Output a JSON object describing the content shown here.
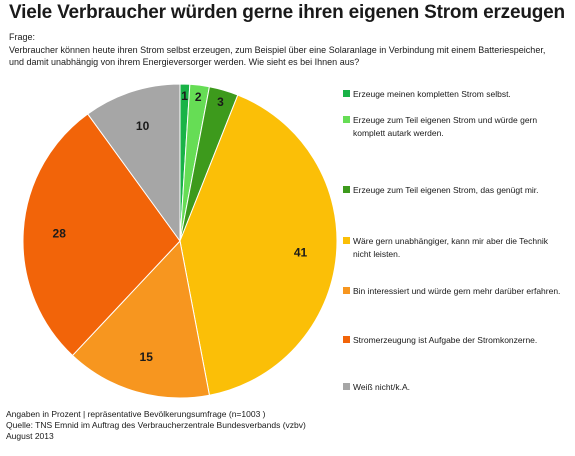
{
  "title": "Viele Verbraucher würden gerne ihren eigenen Strom erzeugen",
  "question_label": "Frage:",
  "question_text": "Verbraucher können heute ihren Strom selbst erzeugen, zum Beispiel über eine Solaranlage in Verbindung mit einem Batteriespeicher, und damit unabhängig von ihrem Energieversorger werden. Wie sieht es bei Ihnen aus?",
  "footer": {
    "note": "Angaben in Prozent | repräsentative Bevölkerungsumfrage (n=1003 )",
    "source": "Quelle: TNS Emnid im Auftrag des Verbraucherzentrale Bundesverbands (vzbv)",
    "date": "August 2013"
  },
  "chart_data": {
    "type": "pie",
    "title": "Viele Verbraucher würden gerne ihren eigenen Strom erzeugen",
    "legend_position": "right",
    "slices": [
      {
        "label": "Erzeuge meinen kompletten Strom selbst.",
        "value": 1,
        "color": "#19b347"
      },
      {
        "label": "Erzeuge zum Teil eigenen Strom und würde gern komplett autark werden.",
        "value": 2,
        "color": "#66dd55"
      },
      {
        "label": "Erzeuge zum Teil eigenen Strom, das genügt mir.",
        "value": 3,
        "color": "#3d9a1c"
      },
      {
        "label": "Wäre gern unabhängiger, kann mir aber die Technik nicht leisten.",
        "value": 41,
        "color": "#fbbf07"
      },
      {
        "label": "Bin interessiert und würde gern mehr darüber erfahren.",
        "value": 15,
        "color": "#f7961f"
      },
      {
        "label": "Stromerzeugung ist Aufgabe der Stromkonzerne.",
        "value": 28,
        "color": "#f26409"
      },
      {
        "label": "Weiß nicht/k.A.",
        "value": 10,
        "color": "#a6a6a6"
      }
    ]
  }
}
